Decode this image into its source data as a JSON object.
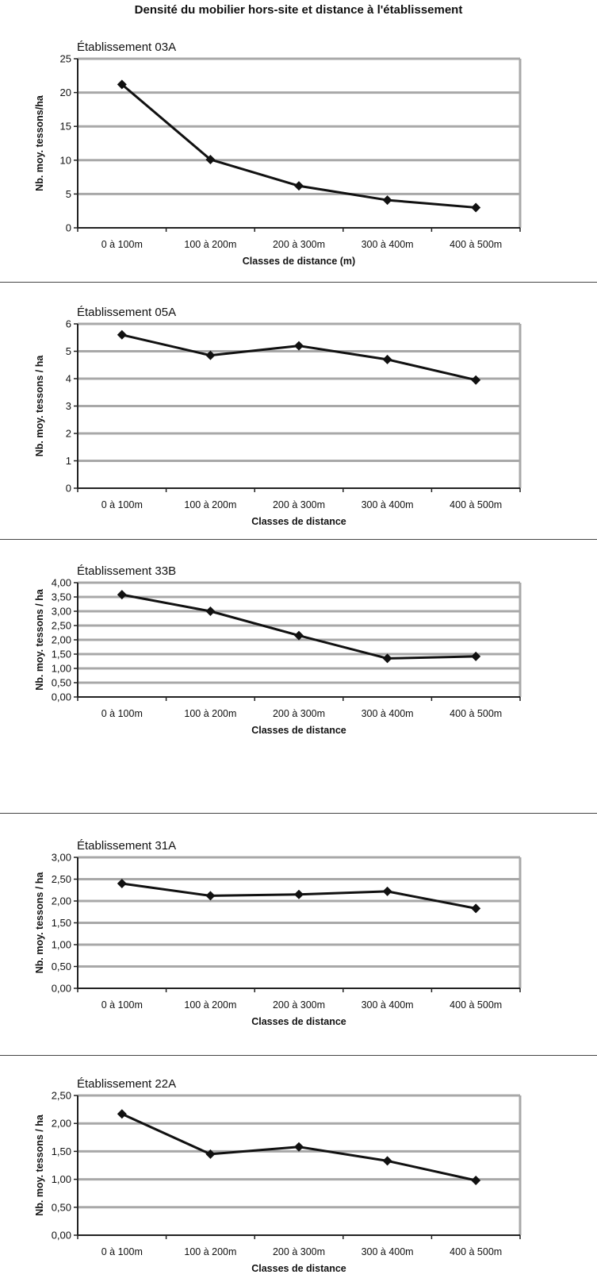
{
  "title": "Densité du mobilier hors-site et distance à l'établissement",
  "chart_data": [
    {
      "type": "line",
      "title": "Établissement 03A",
      "xlabel": "Classes de distance (m)",
      "ylabel": "Nb. moy. tessons/ha",
      "categories": [
        "0 à 100m",
        "100 à 200m",
        "200 à 300m",
        "300 à 400m",
        "400 à 500m"
      ],
      "values": [
        21.2,
        10.1,
        6.2,
        4.1,
        3.0
      ],
      "ylim": [
        0,
        25
      ],
      "yticks": [
        "0",
        "5",
        "10",
        "15",
        "20",
        "25"
      ],
      "grid": true
    },
    {
      "type": "line",
      "title": "Établissement 05A",
      "xlabel": "Classes de distance",
      "ylabel": "Nb. moy. tessons / ha",
      "categories": [
        "0 à 100m",
        "100 à 200m",
        "200 à 300m",
        "300 à 400m",
        "400 à 500m"
      ],
      "values": [
        5.6,
        4.85,
        5.2,
        4.7,
        3.95
      ],
      "ylim": [
        0,
        6
      ],
      "yticks": [
        "0",
        "1",
        "2",
        "3",
        "4",
        "5",
        "6"
      ],
      "grid": true
    },
    {
      "type": "line",
      "title": "Établissement 33B",
      "xlabel": "Classes de distance",
      "ylabel": "Nb. moy. tessons / ha",
      "categories": [
        "0 à 100m",
        "100 à 200m",
        "200 à 300m",
        "300 à 400m",
        "400 à 500m"
      ],
      "values": [
        3.58,
        3.0,
        2.15,
        1.35,
        1.42
      ],
      "ylim": [
        0,
        4
      ],
      "yticks": [
        "0,00",
        "0,50",
        "1,00",
        "1,50",
        "2,00",
        "2,50",
        "3,00",
        "3,50",
        "4,00"
      ],
      "grid": true
    },
    {
      "type": "line",
      "title": "Établissement 31A",
      "xlabel": "Classes de distance",
      "ylabel": "Nb. moy. tessons / ha",
      "categories": [
        "0 à 100m",
        "100 à 200m",
        "200 à 300m",
        "300 à 400m",
        "400 à 500m"
      ],
      "values": [
        2.4,
        2.12,
        2.15,
        2.22,
        1.83
      ],
      "ylim": [
        0,
        3
      ],
      "yticks": [
        "0,00",
        "0,50",
        "1,00",
        "1,50",
        "2,00",
        "2,50",
        "3,00"
      ],
      "grid": true
    },
    {
      "type": "line",
      "title": "Établissement 22A",
      "xlabel": "Classes de distance",
      "ylabel": "Nb. moy. tessons / ha",
      "categories": [
        "0 à 100m",
        "100 à 200m",
        "200 à 300m",
        "300 à 400m",
        "400 à 500m"
      ],
      "values": [
        2.17,
        1.45,
        1.58,
        1.33,
        0.98
      ],
      "ylim": [
        0,
        2.5
      ],
      "yticks": [
        "0,00",
        "0,50",
        "1,00",
        "1,50",
        "2,00",
        "2,50"
      ],
      "grid": true
    }
  ]
}
